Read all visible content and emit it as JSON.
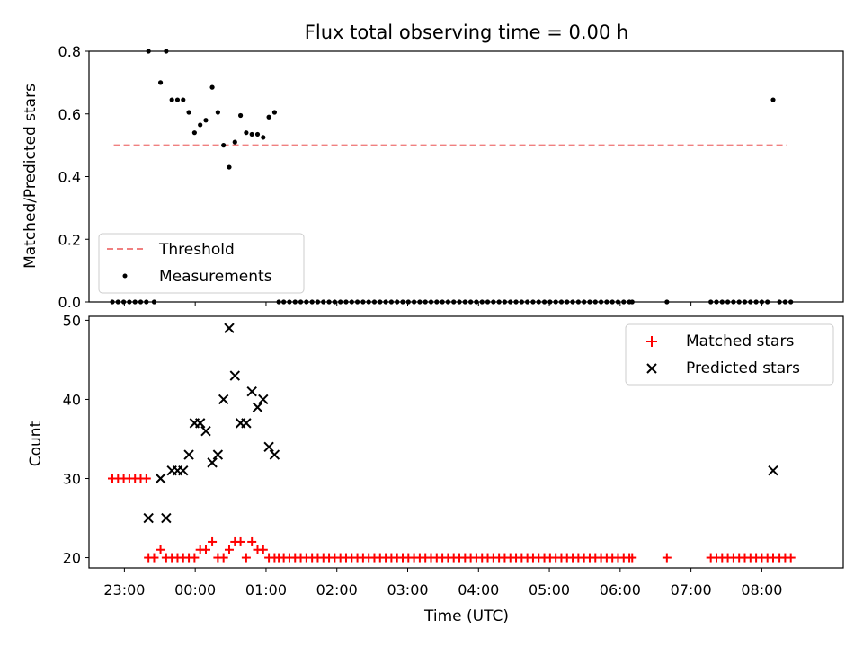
{
  "chart_data": [
    {
      "type": "scatter",
      "title": "Flux total observing time = 0.00 h",
      "xlabel": "",
      "ylabel": "Matched/Predicted stars",
      "xlim": [
        -1.5,
        9.15
      ],
      "ylim": [
        0,
        0.8
      ],
      "yticks": [
        0.0,
        0.2,
        0.4,
        0.6,
        0.8
      ],
      "ytick_labels": [
        "0.0",
        "0.2",
        "0.4",
        "0.6",
        "0.8"
      ],
      "grid": false,
      "legend": {
        "placement": "lower-left",
        "entries": [
          "Threshold",
          "Measurements"
        ]
      },
      "series": [
        {
          "name": "Threshold",
          "style": "dashed-line",
          "color": "#f08080",
          "x": [
            -1.15,
            8.35
          ],
          "y": [
            0.5,
            0.5
          ]
        },
        {
          "name": "Measurements",
          "style": "dot",
          "color": "#000000",
          "x": [
            -1.17,
            -1.09,
            -1.01,
            -0.93,
            -0.85,
            -0.77,
            -0.69,
            -0.66,
            -0.58,
            -0.49,
            -0.41,
            -0.33,
            -0.25,
            -0.17,
            -0.09,
            -0.01,
            0.07,
            0.15,
            0.24,
            0.32,
            0.4,
            0.48,
            0.56,
            0.64,
            0.72,
            0.8,
            0.88,
            0.96,
            1.04,
            1.12,
            1.18,
            1.25,
            1.33,
            1.41,
            1.49,
            1.57,
            1.65,
            1.73,
            1.81,
            1.89,
            1.97,
            2.05,
            2.13,
            2.21,
            2.29,
            2.37,
            2.45,
            2.53,
            2.61,
            2.69,
            2.77,
            2.85,
            2.93,
            3.01,
            3.09,
            3.17,
            3.25,
            3.33,
            3.41,
            3.49,
            3.57,
            3.65,
            3.73,
            3.81,
            3.89,
            3.97,
            4.05,
            4.13,
            4.21,
            4.29,
            4.37,
            4.45,
            4.53,
            4.61,
            4.69,
            4.77,
            4.85,
            4.93,
            5.01,
            5.09,
            5.17,
            5.25,
            5.33,
            5.41,
            5.49,
            5.57,
            5.65,
            5.73,
            5.81,
            5.89,
            5.97,
            6.05,
            6.13,
            6.17,
            6.66,
            7.28,
            7.36,
            7.44,
            7.52,
            7.6,
            7.68,
            7.76,
            7.84,
            7.92,
            8.0,
            8.08,
            8.16,
            8.25,
            8.33,
            8.41
          ],
          "y": [
            0,
            0,
            0,
            0,
            0,
            0,
            0,
            0.8,
            0,
            0.7,
            0.8,
            0.645,
            0.645,
            0.645,
            0.605,
            0.54,
            0.565,
            0.58,
            0.685,
            0.605,
            0.5,
            0.43,
            0.51,
            0.595,
            0.54,
            0.535,
            0.535,
            0.525,
            0.59,
            0.605,
            0,
            0,
            0,
            0,
            0,
            0,
            0,
            0,
            0,
            0,
            0,
            0,
            0,
            0,
            0,
            0,
            0,
            0,
            0,
            0,
            0,
            0,
            0,
            0,
            0,
            0,
            0,
            0,
            0,
            0,
            0,
            0,
            0,
            0,
            0,
            0,
            0,
            0,
            0,
            0,
            0,
            0,
            0,
            0,
            0,
            0,
            0,
            0,
            0,
            0,
            0,
            0,
            0,
            0,
            0,
            0,
            0,
            0,
            0,
            0,
            0,
            0,
            0,
            0,
            0,
            0,
            0,
            0,
            0,
            0,
            0,
            0,
            0,
            0,
            0,
            0,
            0.645,
            0,
            0,
            0
          ]
        }
      ]
    },
    {
      "type": "scatter",
      "title": "",
      "xlabel": "Time (UTC)",
      "ylabel": "Count",
      "xlim": [
        -1.5,
        9.15
      ],
      "ylim": [
        18.7,
        50.5
      ],
      "xticks": [
        -1,
        0,
        1,
        2,
        3,
        4,
        5,
        6,
        7,
        8
      ],
      "xtick_labels": [
        "23:00",
        "00:00",
        "01:00",
        "02:00",
        "03:00",
        "04:00",
        "05:00",
        "06:00",
        "07:00",
        "08:00"
      ],
      "yticks": [
        20,
        30,
        40,
        50
      ],
      "ytick_labels": [
        "20",
        "30",
        "40",
        "50"
      ],
      "grid": false,
      "legend": {
        "placement": "upper-right",
        "entries": [
          "Matched stars",
          "Predicted stars"
        ]
      },
      "series": [
        {
          "name": "Matched stars",
          "marker": "plus",
          "color": "#ff0000",
          "x": [
            -1.17,
            -1.09,
            -1.01,
            -0.93,
            -0.85,
            -0.77,
            -0.69,
            -0.66,
            -0.58,
            -0.49,
            -0.41,
            -0.33,
            -0.25,
            -0.17,
            -0.09,
            -0.01,
            0.07,
            0.15,
            0.24,
            0.32,
            0.4,
            0.48,
            0.56,
            0.64,
            0.72,
            0.8,
            0.88,
            0.96,
            1.04,
            1.12,
            1.18,
            1.25,
            1.33,
            1.41,
            1.49,
            1.57,
            1.65,
            1.73,
            1.81,
            1.89,
            1.97,
            2.05,
            2.13,
            2.21,
            2.29,
            2.37,
            2.45,
            2.53,
            2.61,
            2.69,
            2.77,
            2.85,
            2.93,
            3.01,
            3.09,
            3.17,
            3.25,
            3.33,
            3.41,
            3.49,
            3.57,
            3.65,
            3.73,
            3.81,
            3.89,
            3.97,
            4.05,
            4.13,
            4.21,
            4.29,
            4.37,
            4.45,
            4.53,
            4.61,
            4.69,
            4.77,
            4.85,
            4.93,
            5.01,
            5.09,
            5.17,
            5.25,
            5.33,
            5.41,
            5.49,
            5.57,
            5.65,
            5.73,
            5.81,
            5.89,
            5.97,
            6.05,
            6.13,
            6.17,
            6.66,
            7.28,
            7.36,
            7.44,
            7.52,
            7.6,
            7.68,
            7.76,
            7.84,
            7.92,
            8.0,
            8.08,
            8.16,
            8.25,
            8.33,
            8.41
          ],
          "y": [
            30,
            30,
            30,
            30,
            30,
            30,
            30,
            20,
            20,
            21,
            20,
            20,
            20,
            20,
            20,
            20,
            21,
            21,
            22,
            20,
            20,
            21,
            22,
            22,
            20,
            22,
            21,
            21,
            20,
            20,
            20,
            20,
            20,
            20,
            20,
            20,
            20,
            20,
            20,
            20,
            20,
            20,
            20,
            20,
            20,
            20,
            20,
            20,
            20,
            20,
            20,
            20,
            20,
            20,
            20,
            20,
            20,
            20,
            20,
            20,
            20,
            20,
            20,
            20,
            20,
            20,
            20,
            20,
            20,
            20,
            20,
            20,
            20,
            20,
            20,
            20,
            20,
            20,
            20,
            20,
            20,
            20,
            20,
            20,
            20,
            20,
            20,
            20,
            20,
            20,
            20,
            20,
            20,
            20,
            20,
            20,
            20,
            20,
            20,
            20,
            20,
            20,
            20,
            20,
            20,
            20,
            20,
            20,
            20,
            20
          ]
        },
        {
          "name": "Predicted stars",
          "marker": "x",
          "color": "#000000",
          "x": [
            -0.66,
            -0.49,
            -0.41,
            -0.33,
            -0.25,
            -0.17,
            -0.09,
            -0.01,
            0.07,
            0.15,
            0.24,
            0.32,
            0.4,
            0.48,
            0.56,
            0.64,
            0.72,
            0.8,
            0.88,
            0.96,
            1.04,
            1.12,
            8.16
          ],
          "y": [
            25,
            30,
            25,
            31,
            31,
            31,
            33,
            37,
            37,
            36,
            32,
            33,
            40,
            49,
            43,
            37,
            37,
            41,
            39,
            40,
            34,
            33,
            31
          ]
        }
      ]
    }
  ]
}
